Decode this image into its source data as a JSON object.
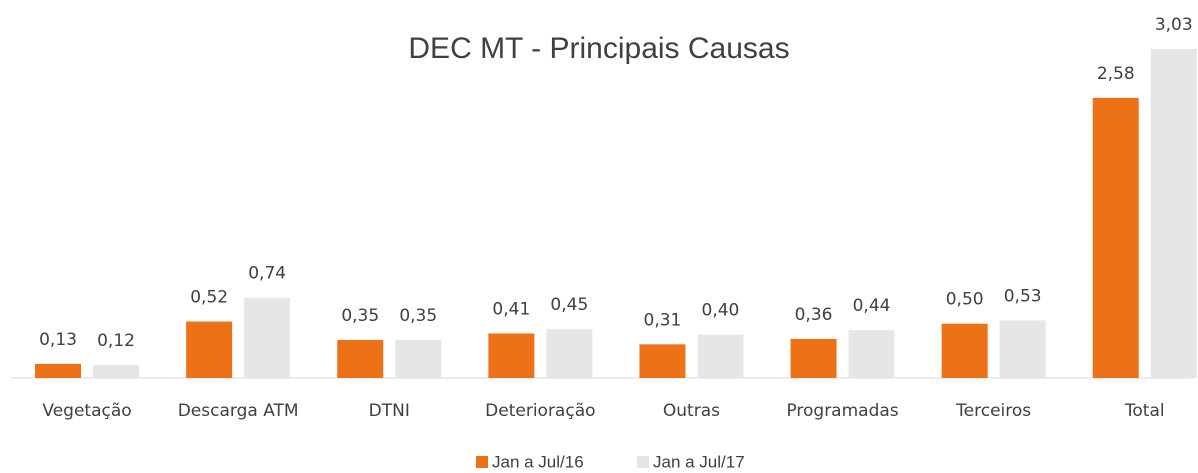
{
  "chart_data": {
    "type": "bar",
    "title": "DEC MT - Principais Causas",
    "categories": [
      "Vegetação",
      "Descarga ATM",
      "DTNI",
      "Deterioração",
      "Outras",
      "Programadas",
      "Terceiros",
      "Total"
    ],
    "series": [
      {
        "name": "Jan a Jul/16",
        "color": "#ed7117",
        "values": [
          0.13,
          0.52,
          0.35,
          0.41,
          0.31,
          0.36,
          0.5,
          2.58
        ],
        "value_labels": [
          "0,13",
          "0,52",
          "0,35",
          "0,41",
          "0,31",
          "0,36",
          "0,50",
          "2,58"
        ]
      },
      {
        "name": "Jan a Jul/17",
        "color": "#e7e6e6",
        "values": [
          0.12,
          0.74,
          0.35,
          0.45,
          0.4,
          0.44,
          0.53,
          3.03
        ],
        "value_labels": [
          "0,12",
          "0,74",
          "0,35",
          "0,45",
          "0,40",
          "0,44",
          "0,53",
          "3,03"
        ]
      }
    ],
    "legend": "bottom"
  }
}
